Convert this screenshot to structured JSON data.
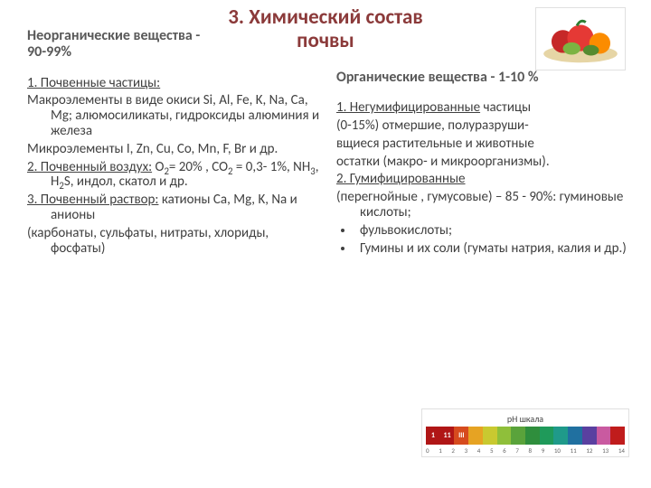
{
  "title_color": "#8b3a3a",
  "title_line1": "3. Химический состав",
  "title_line2": "почвы",
  "left": {
    "subhead1": "Неорганические вещества -",
    "subhead2": "90-99%",
    "p1": "1. Почвенные частицы:",
    "p2": "Макроэлементы в виде окиси Si, Al, Fe, K, Na, Ca, Mg; алюмосиликаты, гидроксиды алюминия и железа",
    "p3": "Микроэлементы I, Zn, Cu, Co, Mn, F, Br и др.",
    "p4_u": "2. Почвенный воздух:",
    "p5_u": "3. Почвенный раствор:",
    "p5_rest": " катионы Ca, Mg, K, Na и анионы",
    "p6": "(карбонаты, сульфаты, нитраты, хлориды, фосфаты)"
  },
  "right": {
    "subhead": "Органические вещества - 1-10 %",
    "p1_u": "1. Негумифицированные",
    "p1_rest": "  частицы",
    "p2": "(0-15%) отмершие, полуразруши-",
    "p3": "вщиеся растительные и животные",
    "p4": "остатки (макро- и микроорганизмы).",
    "p5_u": "2. Гумифицированные",
    "p6": "(перегнойные , гумусовые) – 85 - 90%: гуминовые кислоты;",
    "b1": "фульвокислоты;",
    "b2": "Гумины  и их соли (гуматы натрия, калия и др.)"
  },
  "ph": {
    "title": "pH шкала",
    "cells": [
      {
        "label": "1",
        "color": "#b01616"
      },
      {
        "label": "11",
        "color": "#b01616"
      },
      {
        "label": "III",
        "color": "#d64b1e"
      },
      {
        "label": "",
        "color": "#e6a323"
      },
      {
        "label": "",
        "color": "#c9c930"
      },
      {
        "label": "",
        "color": "#8fbf3a"
      },
      {
        "label": "",
        "color": "#5aa33b"
      },
      {
        "label": "",
        "color": "#2f8e3d"
      },
      {
        "label": "",
        "color": "#1f9a5a"
      },
      {
        "label": "",
        "color": "#1f9a8a"
      },
      {
        "label": "",
        "color": "#2070a0"
      },
      {
        "label": "",
        "color": "#5a40a0"
      },
      {
        "label": "",
        "color": "#c95aa0"
      },
      {
        "label": "",
        "color": "#c01c1c"
      }
    ],
    "axis_labels": [
      "0",
      "1",
      "2",
      "3",
      "4",
      "5",
      "6",
      "7",
      "8",
      "9",
      "10",
      "11",
      "12",
      "13",
      "14"
    ]
  }
}
